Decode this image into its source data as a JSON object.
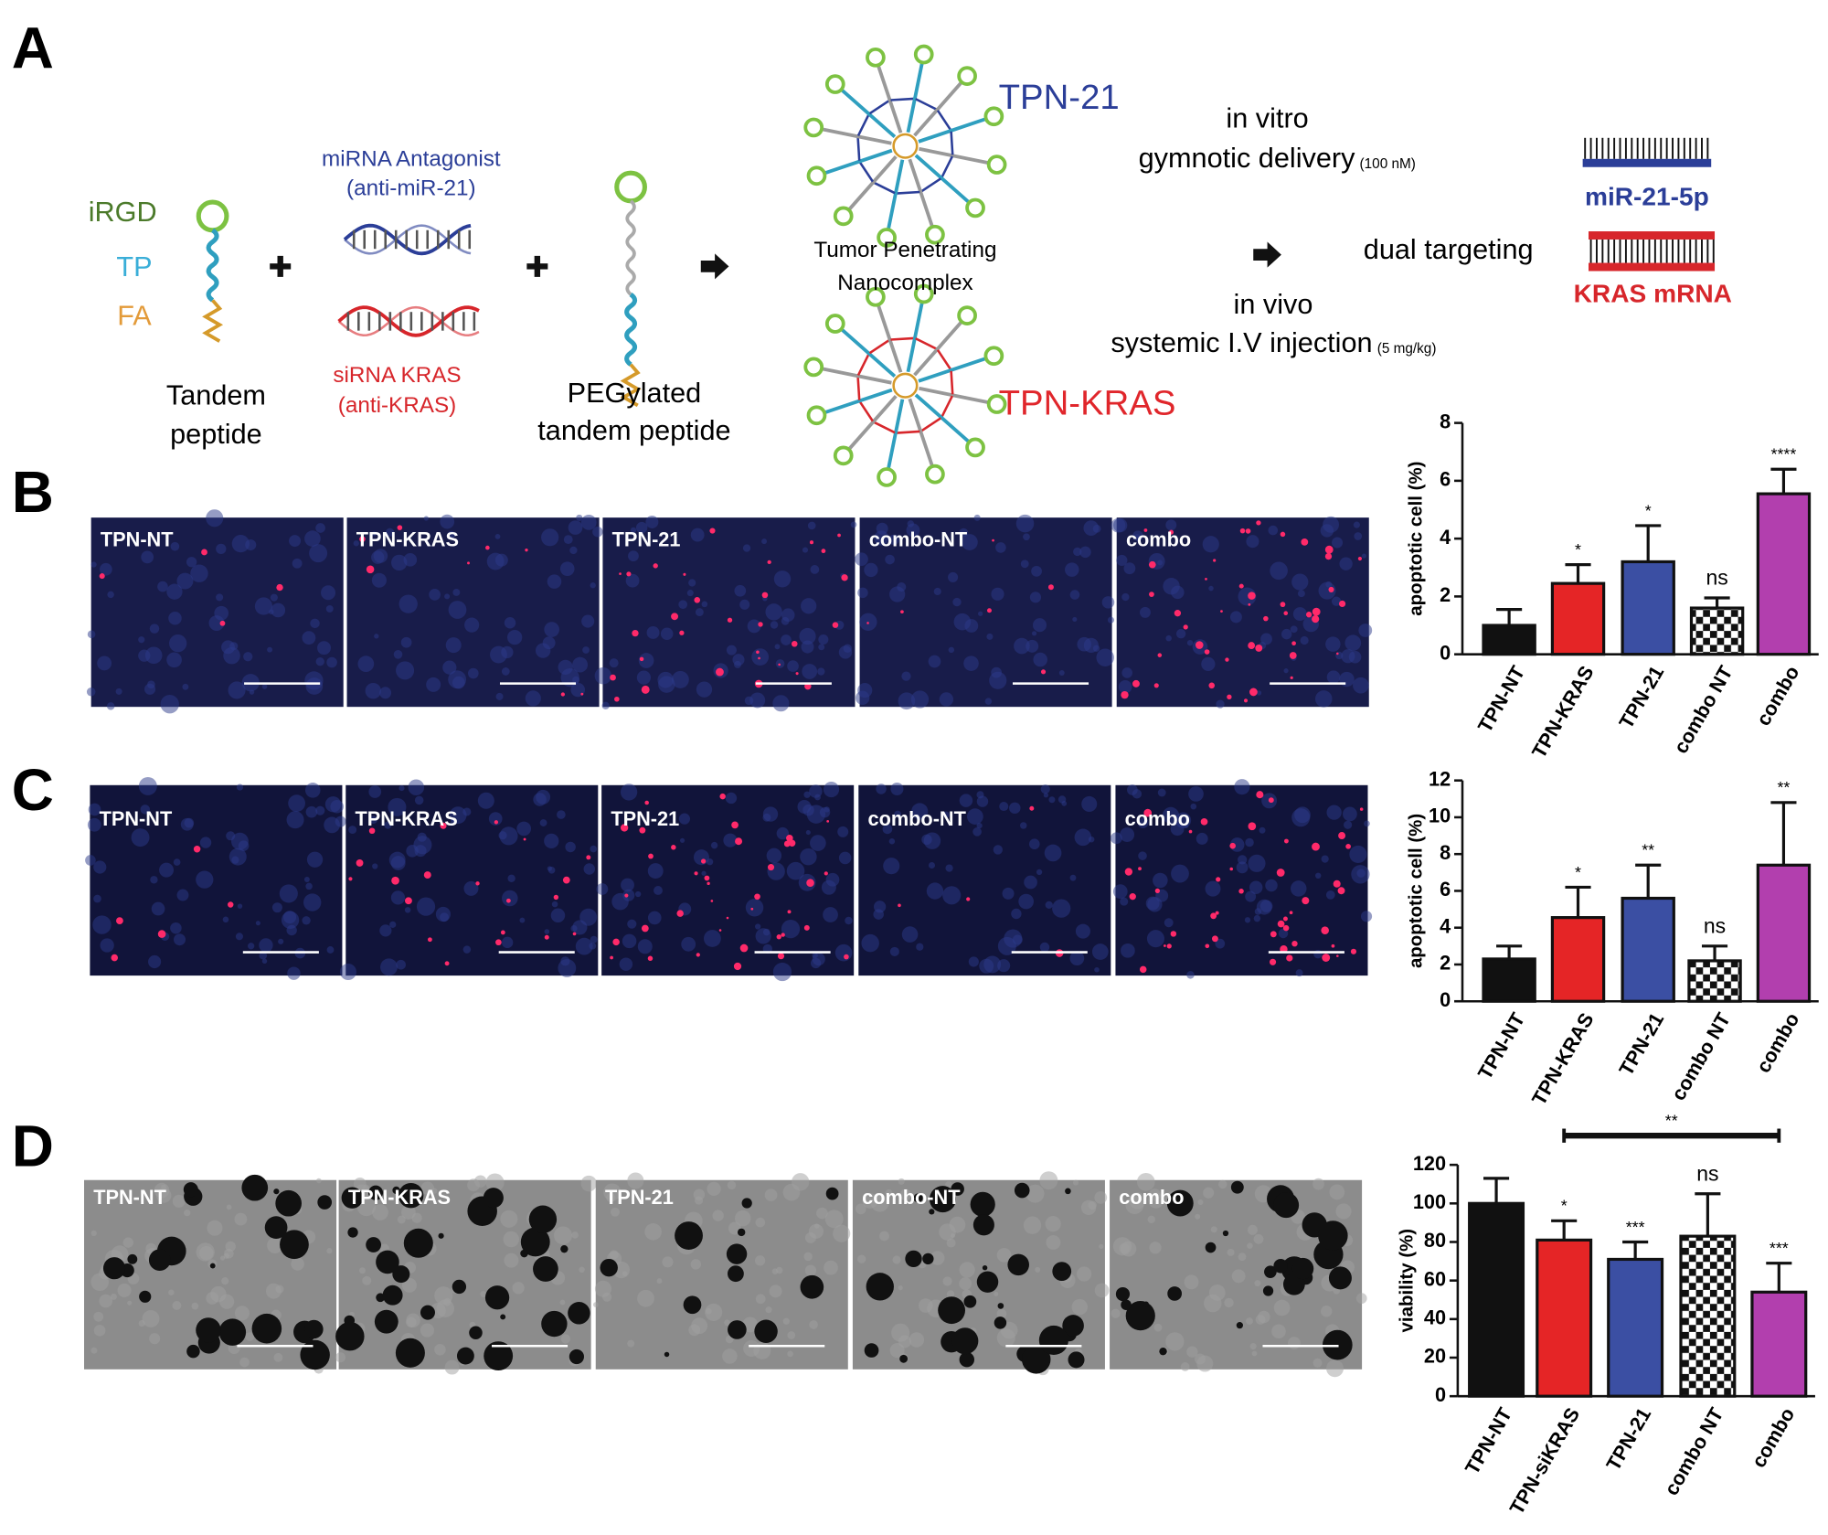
{
  "panel_labels": [
    "A",
    "B",
    "C",
    "D"
  ],
  "panel_a": {
    "peptide_parts": [
      "iRGD",
      "TP",
      "FA"
    ],
    "tandem_peptide": [
      "Tandem",
      "peptide"
    ],
    "mirna": [
      "miRNA Antagonist",
      "(anti-miR-21)"
    ],
    "sirna": [
      "siRNA KRAS",
      "(anti-KRAS)"
    ],
    "pegylated": [
      "PEGylated",
      "tandem peptide"
    ],
    "nanocomplex": [
      "Tumor Penetrating",
      "Nanocomplex"
    ],
    "tpn_21": "TPN-21",
    "tpn_kras": "TPN-KRAS",
    "in_vitro": [
      "in vitro",
      "gymnotic delivery",
      "(100 nM)"
    ],
    "in_vivo": [
      "in vivo",
      "systemic I.V injection",
      "(5 mg/kg)"
    ],
    "dual_targeting": "dual targeting",
    "targets": [
      "miR-21-5p",
      "KRAS mRNA"
    ]
  },
  "micrographs": [
    [
      "TPN-NT",
      "TPN-KRAS",
      "TPN-21",
      "combo-NT",
      "combo"
    ],
    [
      "TPN-NT",
      "TPN-KRAS",
      "TPN-21",
      "combo-NT",
      "combo"
    ],
    [
      "TPN-NT",
      "TPN-KRAS",
      "TPN-21",
      "combo-NT",
      "combo"
    ]
  ],
  "chart_data": [
    {
      "type": "bar",
      "y_label": "apoptotic cell (%)",
      "categories": [
        "TPN-NT",
        "TPN-KRAS",
        "TPN-21",
        "combo NT",
        "combo"
      ],
      "values": [
        1.0,
        2.45,
        3.2,
        1.6,
        5.55
      ],
      "errors": [
        0.55,
        0.65,
        1.25,
        0.35,
        0.85
      ],
      "annotations": [
        null,
        "*",
        "*",
        "ns",
        "****"
      ],
      "colors": [
        "#111111",
        "#e52526",
        "#3b4fa3",
        "checker",
        "#b23fae"
      ],
      "ylim": [
        0,
        8
      ],
      "yticks": [
        0,
        2,
        4,
        6,
        8
      ]
    },
    {
      "type": "bar",
      "y_label": "apoptotic cell (%)",
      "categories": [
        "TPN-NT",
        "TPN-KRAS",
        "TPN-21",
        "combo NT",
        "combo"
      ],
      "values": [
        2.3,
        4.55,
        5.6,
        2.2,
        7.4
      ],
      "errors": [
        0.7,
        1.65,
        1.8,
        0.8,
        3.4
      ],
      "annotations": [
        null,
        "*",
        "**",
        "ns",
        "**"
      ],
      "colors": [
        "#111111",
        "#e52526",
        "#3b4fa3",
        "checker",
        "#b23fae"
      ],
      "ylim": [
        0,
        12
      ],
      "yticks": [
        0,
        2,
        4,
        6,
        8,
        10,
        12
      ]
    },
    {
      "type": "bar",
      "y_label": "viability (%)",
      "categories": [
        "TPN-NT",
        "TPN-siKRAS",
        "TPN-21",
        "combo NT",
        "combo"
      ],
      "values": [
        100,
        81,
        71,
        83,
        54
      ],
      "errors": [
        13,
        10,
        9,
        22,
        15
      ],
      "annotations": [
        null,
        "*",
        "***",
        "ns",
        "***"
      ],
      "colors": [
        "#111111",
        "#e52526",
        "#3b4fa3",
        "checker",
        "#b23fae"
      ],
      "bracket": {
        "from": 1,
        "to": 4,
        "label": "**"
      },
      "ylim": [
        0,
        120
      ],
      "yticks": [
        0,
        20,
        40,
        60,
        80,
        100,
        120
      ]
    }
  ]
}
